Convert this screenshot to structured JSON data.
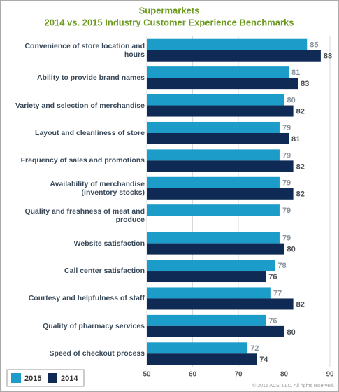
{
  "chart_data": {
    "type": "bar",
    "orientation": "horizontal",
    "title": "Supermarkets",
    "subtitle": "2014 vs. 2015 Industry Customer Experience Benchmarks",
    "copyright": "© 2016 ACSI LLC. All rights reserved.",
    "categories": [
      "Convenience of store location and hours",
      "Ability to provide brand names",
      "Variety and selection of merchandise",
      "Layout and cleanliness of store",
      "Frequency of sales and promotions",
      "Availability of merchandise\n(inventory stocks)",
      "Quality and freshness of meat and produce",
      "Website satisfaction",
      "Call center satisfaction",
      "Courtesy and helpfulness of staff",
      "Quality of pharmacy services",
      "Speed of checkout process"
    ],
    "series": [
      {
        "name": "2015",
        "color": "#1c9cc9",
        "values": [
          85,
          81,
          80,
          79,
          79,
          79,
          79,
          79,
          78,
          77,
          76,
          72
        ]
      },
      {
        "name": "2014",
        "color": "#0e2a55",
        "values": [
          88,
          83,
          82,
          81,
          82,
          82,
          null,
          80,
          76,
          82,
          80,
          74
        ]
      }
    ],
    "xlim": [
      50,
      90
    ],
    "xticks": [
      50,
      60,
      70,
      80,
      90
    ],
    "grid": true,
    "legend": "bottom-left"
  }
}
